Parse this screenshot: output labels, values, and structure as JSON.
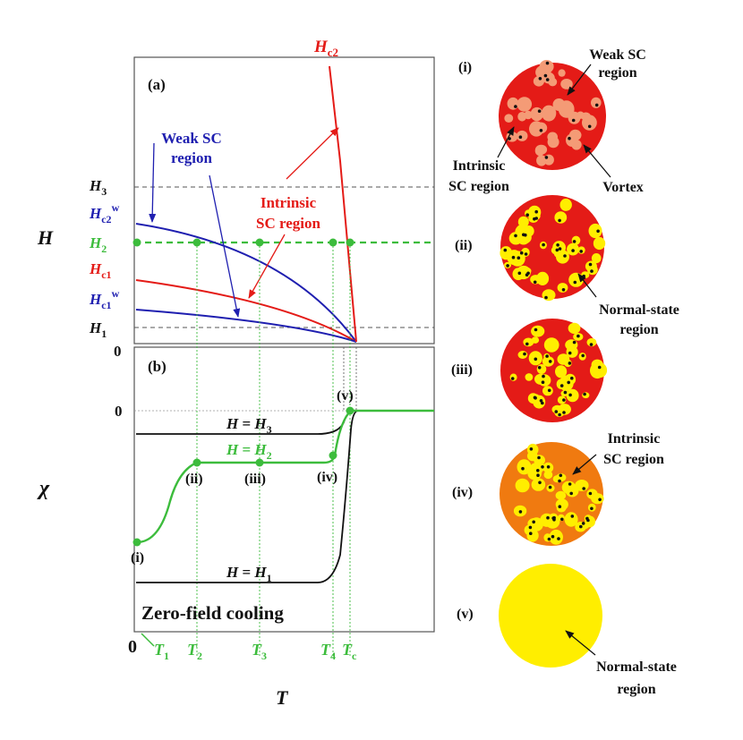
{
  "colors": {
    "blue": "#1f1fb0",
    "red": "#e41b17",
    "green": "#3cbc3c",
    "black": "#111111",
    "gray": "#555555",
    "yellow": "#ffee00",
    "orange": "#f07a10",
    "salmon": "#f49b76"
  },
  "panel_a": {
    "label": "(a)",
    "y_axis_label": "H",
    "hc2_label": {
      "main": "H",
      "sub": "c2"
    },
    "weak_region_label": [
      "Weak SC",
      "region"
    ],
    "intrinsic_region_label": [
      "Intrinsic",
      "SC region"
    ],
    "y_ticks": {
      "H3": {
        "main": "H",
        "sub": "3",
        "sup": ""
      },
      "Hc2w": {
        "main": "H",
        "sub": "c2",
        "sup": "w"
      },
      "H2": {
        "main": "H",
        "sub": "2",
        "sup": ""
      },
      "Hc1": {
        "main": "H",
        "sub": "c1",
        "sup": ""
      },
      "Hc1w": {
        "main": "H",
        "sub": "c1",
        "sup": "w"
      },
      "H1": {
        "main": "H",
        "sub": "1",
        "sup": ""
      }
    },
    "zero_label": "0"
  },
  "panel_b": {
    "label": "(b)",
    "y_axis_label": "χ",
    "zero_label": "0",
    "curve_labels": {
      "H3": {
        "lhs": "H",
        "eq": " = ",
        "rhs": "H",
        "sub": "3"
      },
      "H2": {
        "lhs": "H",
        "eq": " = ",
        "rhs": "H",
        "sub": "2"
      },
      "H1": {
        "lhs": "H",
        "eq": " = ",
        "rhs": "H",
        "sub": "1"
      }
    },
    "point_labels": [
      "(i)",
      "(ii)",
      "(iii)",
      "(iv)",
      "(v)"
    ],
    "zfc_label": "Zero-field cooling"
  },
  "x_axis": {
    "label": "T",
    "zero": "0",
    "ticks": [
      {
        "main": "T",
        "sub": "1"
      },
      {
        "main": "T",
        "sub": "2"
      },
      {
        "main": "T",
        "sub": "3"
      },
      {
        "main": "T",
        "sub": "4"
      },
      {
        "main": "T",
        "sub": "c"
      }
    ]
  },
  "state_panels": {
    "labels": [
      "(i)",
      "(ii)",
      "(iii)",
      "(iv)",
      "(v)"
    ],
    "annotations": {
      "weak_sc": [
        "Weak SC",
        "region"
      ],
      "intrinsic": [
        "Intrinsic",
        "SC region"
      ],
      "vortex": "Vortex",
      "normal_ii": [
        "Normal-state",
        "region"
      ],
      "intrinsic_iv": [
        "Intrinsic",
        "SC region"
      ],
      "normal_v": [
        "Normal-state",
        "region"
      ]
    }
  }
}
